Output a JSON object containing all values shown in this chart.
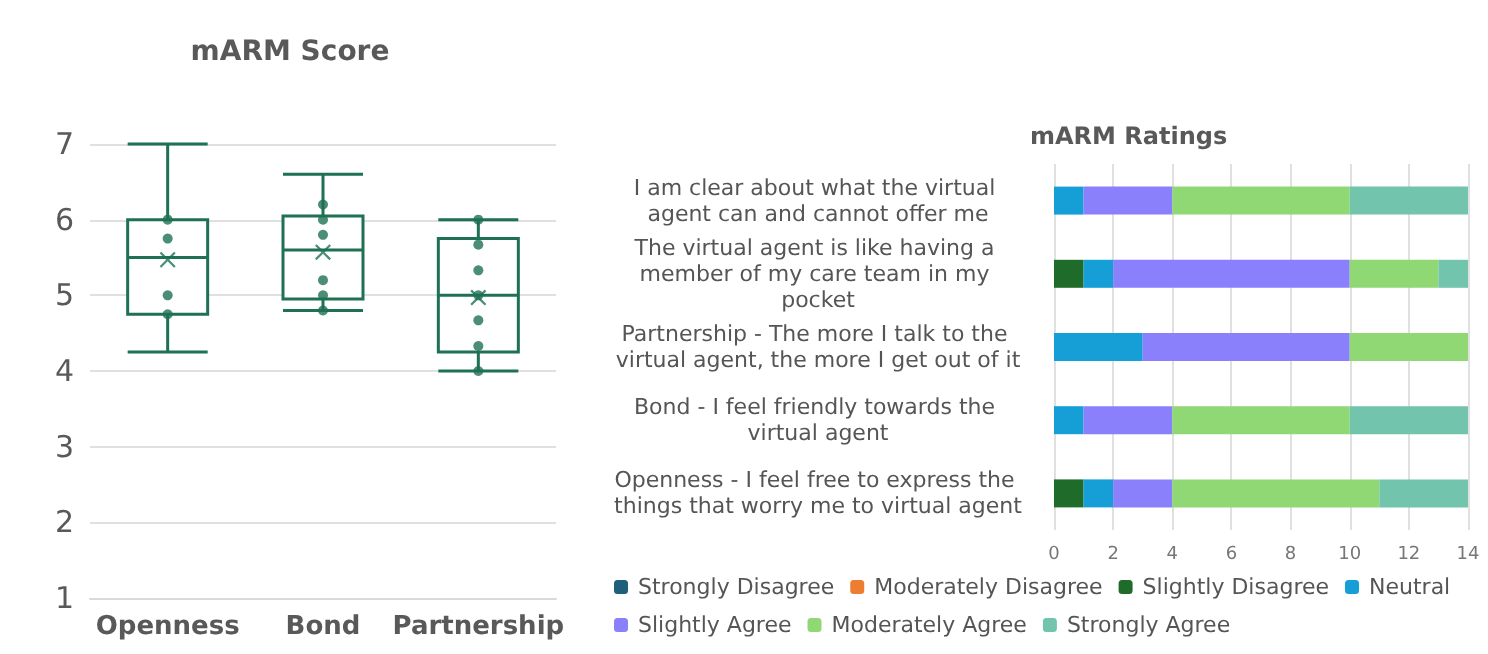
{
  "chart_data": [
    {
      "type": "box",
      "title": "mARM Score",
      "categories": [
        "Openness",
        "Bond",
        "Partnership"
      ],
      "ylim": [
        1,
        7
      ],
      "yticks": [
        1,
        2,
        3,
        4,
        5,
        6,
        7
      ],
      "grid": "y",
      "legend": false,
      "series": [
        {
          "type": "box",
          "color": "#1e7152",
          "boxes": [
            {
              "low": 4.25,
              "q1": 4.75,
              "median": 5.5,
              "q3": 6,
              "high": 7,
              "mean": 5.47
            },
            {
              "low": 4.8,
              "q1": 4.95,
              "median": 5.6,
              "q3": 6.05,
              "high": 6.6,
              "mean": 5.57
            },
            {
              "low": 4,
              "q1": 4.25,
              "median": 5,
              "q3": 5.75,
              "high": 6,
              "mean": 4.97
            }
          ]
        },
        {
          "type": "scatter",
          "color": "#1e7152",
          "x": [
            "Openness",
            "Openness",
            "Openness",
            "Openness",
            "Bond",
            "Bond",
            "Bond",
            "Bond",
            "Bond",
            "Bond",
            "Partnership",
            "Partnership",
            "Partnership",
            "Partnership",
            "Partnership",
            "Partnership",
            "Partnership"
          ],
          "values": [
            4.75,
            5,
            5.75,
            6,
            4.8,
            5,
            5.2,
            5.8,
            6,
            6.2,
            4,
            4.33,
            4.67,
            5,
            5.33,
            5.67,
            6
          ]
        }
      ]
    },
    {
      "type": "bar",
      "orientation": "horizontal",
      "stacked": true,
      "title": "mARM Ratings",
      "categories": [
        "I am clear about what the virtual agent can and cannot offer me",
        "The virtual agent is like having a member of my care team in my pocket",
        "Partnership - The more I talk to the virtual agent, the more I get out of it",
        "Bond - I feel friendly towards the virtual agent",
        "Openness - I feel free to express the things that worry me to virtual agent"
      ],
      "xlim": [
        0,
        14
      ],
      "xticks": [
        0,
        2,
        4,
        6,
        8,
        10,
        12,
        14
      ],
      "grid": "x",
      "legend": "bottom",
      "series": [
        {
          "name": "Strongly Disagree",
          "color": "#1f5f7a",
          "values": [
            0,
            0,
            0,
            0,
            0
          ]
        },
        {
          "name": "Moderately Disagree",
          "color": "#ed7d31",
          "values": [
            0,
            0,
            0,
            0,
            0
          ]
        },
        {
          "name": "Slightly Disagree",
          "color": "#1e6b2a",
          "values": [
            0,
            1,
            0,
            0,
            1
          ]
        },
        {
          "name": "Neutral",
          "color": "#159fd6",
          "values": [
            1,
            1,
            3,
            1,
            1
          ]
        },
        {
          "name": "Slightly Agree",
          "color": "#8b80fb",
          "values": [
            3,
            8,
            7,
            3,
            2
          ]
        },
        {
          "name": "Moderately Agree",
          "color": "#8fd874",
          "values": [
            6,
            3,
            4,
            6,
            7
          ]
        },
        {
          "name": "Strongly Agree",
          "color": "#72c4ad",
          "values": [
            4,
            1,
            0,
            4,
            3
          ]
        }
      ]
    }
  ]
}
